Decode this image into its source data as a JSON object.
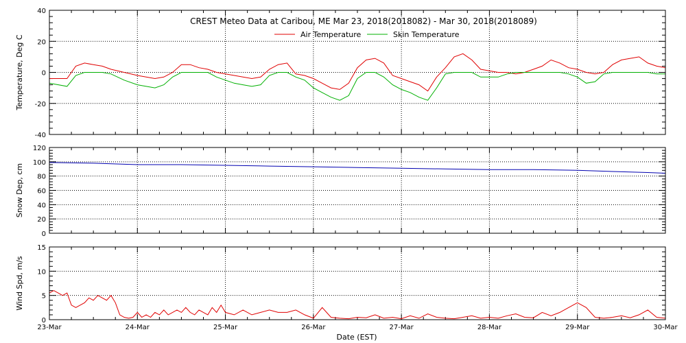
{
  "chart_data": {
    "type": "line",
    "title": "CREST Meteo Data at Caribou, ME   Mar 23, 2018(2018082) - Mar 30, 2018(2018089)",
    "xlabel": "Date (EST)",
    "x_ticks": [
      "23-Mar",
      "24-Mar",
      "25-Mar",
      "26-Mar",
      "27-Mar",
      "28-Mar",
      "29-Mar",
      "30-Mar"
    ],
    "x_range_days": [
      0,
      7
    ],
    "grid": true,
    "legend_position": "top-center",
    "panels": [
      {
        "ylabel": "Temperature, Deg C",
        "ylim": [
          -40,
          40
        ],
        "yticks": [
          -40,
          -20,
          0,
          20,
          40
        ],
        "series": [
          {
            "name": "Air Temperature",
            "color": "#e00000",
            "x": [
              0,
              0.2,
              0.3,
              0.4,
              0.5,
              0.6,
              0.7,
              0.85,
              1.0,
              1.1,
              1.2,
              1.3,
              1.4,
              1.5,
              1.6,
              1.7,
              1.8,
              1.9,
              2.0,
              2.1,
              2.2,
              2.3,
              2.4,
              2.5,
              2.6,
              2.7,
              2.8,
              2.9,
              3.0,
              3.1,
              3.2,
              3.3,
              3.4,
              3.5,
              3.6,
              3.7,
              3.8,
              3.9,
              4.0,
              4.1,
              4.2,
              4.3,
              4.4,
              4.5,
              4.6,
              4.7,
              4.8,
              4.9,
              5.0,
              5.1,
              5.2,
              5.3,
              5.4,
              5.5,
              5.6,
              5.7,
              5.8,
              5.9,
              6.0,
              6.1,
              6.2,
              6.3,
              6.4,
              6.5,
              6.6,
              6.7,
              6.8,
              6.9,
              7.0
            ],
            "y": [
              -4,
              -4,
              4,
              6,
              5,
              4,
              2,
              0,
              -2,
              -3,
              -4,
              -3,
              0,
              5,
              5,
              3,
              2,
              0,
              -1,
              -2,
              -3,
              -4,
              -3,
              2,
              5,
              6,
              -1,
              -2,
              -4,
              -7,
              -10,
              -11,
              -7,
              3,
              8,
              9,
              6,
              -2,
              -4,
              -6,
              -8,
              -12,
              -3,
              3,
              10,
              12,
              8,
              2,
              1,
              0,
              0,
              -1,
              0,
              2,
              4,
              8,
              6,
              3,
              2,
              0,
              -1,
              0,
              5,
              8,
              9,
              10,
              6,
              4,
              3
            ]
          },
          {
            "name": "Skin Temperature",
            "color": "#00b000",
            "x": [
              0,
              0.2,
              0.3,
              0.4,
              0.5,
              0.6,
              0.7,
              0.85,
              1.0,
              1.1,
              1.2,
              1.3,
              1.4,
              1.5,
              1.6,
              1.7,
              1.8,
              1.9,
              2.0,
              2.1,
              2.2,
              2.3,
              2.4,
              2.5,
              2.6,
              2.7,
              2.8,
              2.9,
              3.0,
              3.1,
              3.2,
              3.3,
              3.4,
              3.5,
              3.6,
              3.7,
              3.8,
              3.9,
              4.0,
              4.1,
              4.2,
              4.3,
              4.4,
              4.5,
              4.6,
              4.7,
              4.8,
              4.9,
              5.0,
              5.1,
              5.2,
              5.3,
              5.4,
              5.5,
              5.6,
              5.7,
              5.8,
              5.9,
              6.0,
              6.1,
              6.2,
              6.3,
              6.4,
              6.5,
              6.6,
              6.7,
              6.8,
              6.9,
              7.0
            ],
            "y": [
              -7,
              -9,
              -2,
              0,
              0,
              0,
              -1,
              -5,
              -8,
              -9,
              -10,
              -8,
              -3,
              0,
              0,
              0,
              0,
              -3,
              -5,
              -7,
              -8,
              -9,
              -8,
              -2,
              0,
              0,
              -3,
              -5,
              -10,
              -13,
              -16,
              -18,
              -15,
              -4,
              0,
              0,
              -3,
              -8,
              -11,
              -13,
              -16,
              -18,
              -10,
              -1,
              0,
              0,
              0,
              -3,
              -3,
              -3,
              -1,
              0,
              0,
              0,
              0,
              0,
              0,
              -1,
              -3,
              -7,
              -6,
              -1,
              0,
              0,
              0,
              0,
              0,
              -1,
              -1
            ]
          }
        ]
      },
      {
        "ylabel": "Snow Dep, cm",
        "ylim": [
          0,
          120
        ],
        "yticks": [
          0,
          20,
          40,
          60,
          80,
          100,
          120
        ],
        "series": [
          {
            "name": "",
            "color": "#0000b0",
            "x": [
              0,
              0.5,
              1.0,
              1.5,
              2.0,
              2.5,
              3.0,
              3.5,
              4.0,
              4.5,
              5.0,
              5.5,
              6.0,
              6.5,
              6.8,
              7.0
            ],
            "y": [
              99,
              98,
              96,
              96,
              95,
              94,
              93,
              92,
              91,
              90,
              89,
              89,
              88,
              86,
              85,
              84
            ]
          }
        ]
      },
      {
        "ylabel": "Wind Spd, m/s",
        "ylim": [
          0,
          15
        ],
        "yticks": [
          0,
          5,
          10,
          15
        ],
        "series": [
          {
            "name": "",
            "color": "#e00000",
            "x": [
              0,
              0.05,
              0.1,
              0.15,
              0.2,
              0.25,
              0.3,
              0.35,
              0.4,
              0.45,
              0.5,
              0.55,
              0.6,
              0.65,
              0.7,
              0.75,
              0.8,
              0.85,
              0.9,
              0.95,
              1.0,
              1.05,
              1.1,
              1.15,
              1.2,
              1.25,
              1.3,
              1.35,
              1.4,
              1.45,
              1.5,
              1.55,
              1.6,
              1.65,
              1.7,
              1.75,
              1.8,
              1.85,
              1.9,
              1.95,
              2.0,
              2.1,
              2.2,
              2.3,
              2.4,
              2.5,
              2.6,
              2.7,
              2.8,
              2.9,
              3.0,
              3.1,
              3.2,
              3.3,
              3.4,
              3.5,
              3.6,
              3.7,
              3.8,
              3.9,
              4.0,
              4.1,
              4.2,
              4.3,
              4.4,
              4.5,
              4.6,
              4.7,
              4.8,
              4.9,
              5.0,
              5.1,
              5.2,
              5.3,
              5.4,
              5.5,
              5.6,
              5.7,
              5.8,
              5.9,
              6.0,
              6.1,
              6.2,
              6.3,
              6.4,
              6.5,
              6.6,
              6.7,
              6.8,
              6.9,
              7.0
            ],
            "y": [
              5.5,
              6,
              5.5,
              5,
              5.5,
              3,
              2.5,
              3,
              3.5,
              4.5,
              4,
              5,
              4.5,
              4,
              5,
              3.5,
              1,
              0.5,
              0.3,
              0.5,
              1.5,
              0.5,
              1,
              0.5,
              1.5,
              1,
              2,
              1,
              1.5,
              2,
              1.5,
              2.5,
              1.5,
              1,
              2,
              1.5,
              1,
              2.5,
              1.5,
              3,
              1.5,
              1,
              2,
              1,
              1.5,
              2,
              1.5,
              1.5,
              2,
              1,
              0.3,
              2.5,
              0.5,
              0.3,
              0.2,
              0.5,
              0.4,
              1,
              0.3,
              0.5,
              0.2,
              0.8,
              0.3,
              1.2,
              0.5,
              0.3,
              0.2,
              0.5,
              0.8,
              0.3,
              0.5,
              0.3,
              0.8,
              1.2,
              0.5,
              0.4,
              1.5,
              0.8,
              1.5,
              2.5,
              3.5,
              2.5,
              0.5,
              0.3,
              0.5,
              0.8,
              0.4,
              1,
              2,
              0.5,
              0.3
            ]
          }
        ]
      }
    ]
  }
}
